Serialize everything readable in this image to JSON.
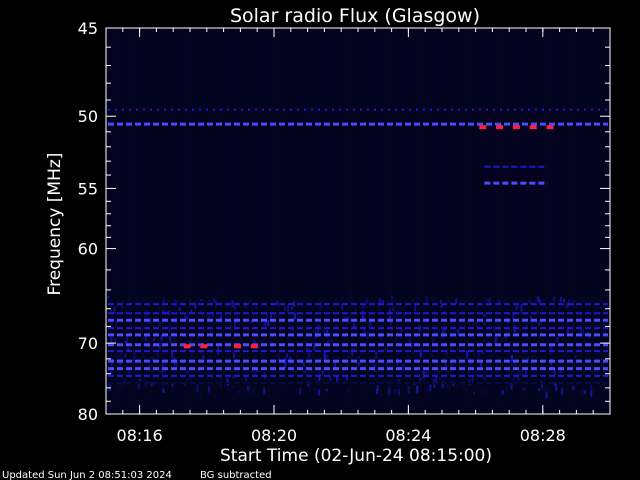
{
  "chart_data": {
    "type": "heatmap",
    "title": "Solar radio Flux (Glasgow)",
    "xlabel": "Start Time (02-Jun-24 08:15:00)",
    "ylabel": "Frequency [MHz]",
    "x_axis": {
      "unit": "minutes after 08:15",
      "range": [
        0,
        15
      ],
      "ticks": [
        {
          "value": 1,
          "label": "08:16"
        },
        {
          "value": 5,
          "label": "08:20"
        },
        {
          "value": 9,
          "label": "08:24"
        },
        {
          "value": 13,
          "label": "08:28"
        }
      ],
      "minor_step": 0.5
    },
    "y_axis": {
      "scale": "reciprocal",
      "range": [
        45,
        80
      ],
      "ticks": [
        45,
        50,
        55,
        60,
        70,
        80
      ],
      "minor_ticks": [
        46,
        47,
        48,
        49,
        51,
        52,
        53,
        54,
        56,
        57,
        58,
        59,
        62,
        64,
        66,
        68,
        72,
        74,
        76,
        78
      ]
    },
    "colors": {
      "background": "#000000",
      "plot_background": "#04041e",
      "low_intensity": "#0a0a3a",
      "medium_intensity": "#1a1ad0",
      "high_intensity": "#4a4aff",
      "peak_intensity": "#ff2040",
      "axes": "#ffffff"
    },
    "interference_bands": [
      {
        "freq": 49.6,
        "t_start": 0,
        "t_end": 15,
        "level": "medium",
        "style": "dotted"
      },
      {
        "freq": 50.5,
        "t_start": 0,
        "t_end": 15,
        "level": "high",
        "style": "dashed"
      },
      {
        "freq": 53.4,
        "t_start": 11.2,
        "t_end": 13.2,
        "level": "medium",
        "style": "dashed"
      },
      {
        "freq": 54.6,
        "t_start": 11.2,
        "t_end": 13.2,
        "level": "high",
        "style": "dashed"
      },
      {
        "freq": 65.5,
        "t_start": 0,
        "t_end": 15,
        "level": "medium",
        "style": "dashed"
      },
      {
        "freq": 66.5,
        "t_start": 0,
        "t_end": 15,
        "level": "medium",
        "style": "dashed"
      },
      {
        "freq": 67.3,
        "t_start": 0,
        "t_end": 15,
        "level": "high",
        "style": "dashed"
      },
      {
        "freq": 68.2,
        "t_start": 0,
        "t_end": 15,
        "level": "medium",
        "style": "dashed"
      },
      {
        "freq": 69.0,
        "t_start": 0,
        "t_end": 15,
        "level": "high",
        "style": "dashed"
      },
      {
        "freq": 70.2,
        "t_start": 0,
        "t_end": 15,
        "level": "high",
        "style": "dashed"
      },
      {
        "freq": 71.0,
        "t_start": 0,
        "t_end": 15,
        "level": "medium",
        "style": "dashed"
      },
      {
        "freq": 72.3,
        "t_start": 0,
        "t_end": 15,
        "level": "high",
        "style": "dashed"
      },
      {
        "freq": 73.3,
        "t_start": 0,
        "t_end": 15,
        "level": "high",
        "style": "dashed"
      },
      {
        "freq": 74.3,
        "t_start": 0,
        "t_end": 15,
        "level": "medium",
        "style": "dashed"
      },
      {
        "freq": 75.3,
        "t_start": 0,
        "t_end": 15,
        "level": "low",
        "style": "dashed"
      }
    ],
    "peaks": [
      {
        "freq": 50.7,
        "t": 11.2
      },
      {
        "freq": 50.7,
        "t": 11.7
      },
      {
        "freq": 50.7,
        "t": 12.2
      },
      {
        "freq": 50.7,
        "t": 12.7
      },
      {
        "freq": 50.7,
        "t": 13.2
      },
      {
        "freq": 70.4,
        "t": 2.4
      },
      {
        "freq": 70.4,
        "t": 2.9
      },
      {
        "freq": 70.4,
        "t": 3.9
      },
      {
        "freq": 70.4,
        "t": 4.4
      }
    ],
    "grid": false,
    "legend": "none"
  },
  "footer": {
    "updated": "Updated Sun Jun  2 08:51:03 2024",
    "note": "BG subtracted"
  }
}
